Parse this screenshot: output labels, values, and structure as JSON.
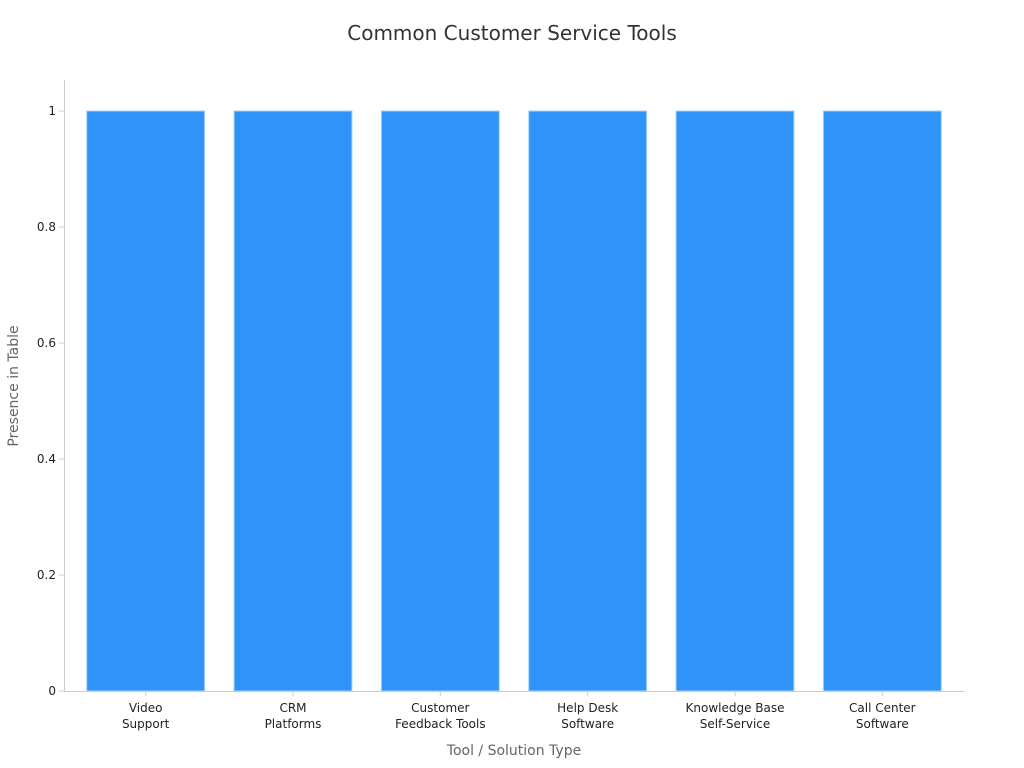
{
  "chart_data": {
    "type": "bar",
    "title": "Common Customer Service Tools",
    "xlabel": "Tool / Solution Type",
    "ylabel": "Presence in Table",
    "categories": [
      [
        "Video",
        "Support"
      ],
      [
        "CRM",
        "Platforms"
      ],
      [
        "Customer",
        "Feedback Tools"
      ],
      [
        "Help Desk",
        "Software"
      ],
      [
        "Knowledge Base",
        "Self-Service"
      ],
      [
        "Call Center",
        "Software"
      ]
    ],
    "values": [
      1,
      1,
      1,
      1,
      1,
      1
    ],
    "ylim": [
      0,
      1.05
    ],
    "yticks": [
      "0",
      "0.2",
      "0.4",
      "0.6",
      "0.8",
      "1"
    ],
    "ytick_values": [
      0,
      0.2,
      0.4,
      0.6,
      0.8,
      1
    ],
    "grid": false,
    "legend": "none",
    "bar_color": "#2f93f7"
  }
}
